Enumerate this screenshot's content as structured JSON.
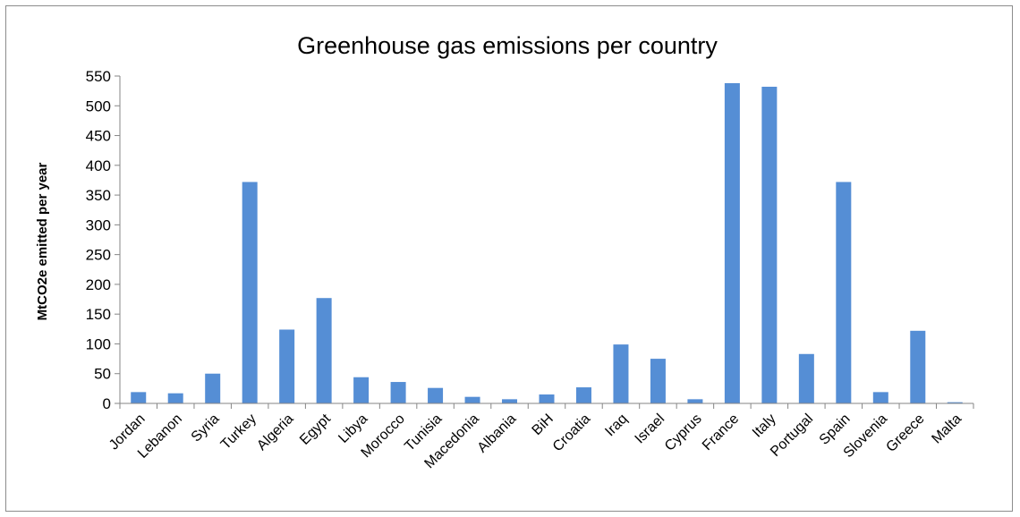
{
  "chart_data": {
    "type": "bar",
    "title": "Greenhouse gas emissions per country",
    "xlabel": "",
    "ylabel": "MtCO2e emitted per year",
    "ylim": [
      0,
      550
    ],
    "yticks": [
      0,
      50,
      100,
      150,
      200,
      250,
      300,
      350,
      400,
      450,
      500,
      550
    ],
    "grid": false,
    "legend": "none",
    "bar_color": "#558ed5",
    "categories": [
      "Jordan",
      "Lebanon",
      "Syria",
      "Turkey",
      "Algeria",
      "Egypt",
      "Libya",
      "Morocco",
      "Tunisia",
      "Macedonia",
      "Albania",
      "BiH",
      "Croatia",
      "Iraq",
      "Israel",
      "Cyprus",
      "France",
      "Italy",
      "Portugal",
      "Spain",
      "Slovenia",
      "Greece",
      "Malta"
    ],
    "values": [
      19,
      17,
      50,
      372,
      124,
      177,
      44,
      36,
      26,
      11,
      7,
      15,
      27,
      99,
      75,
      7,
      538,
      532,
      83,
      372,
      19,
      122,
      2
    ]
  }
}
